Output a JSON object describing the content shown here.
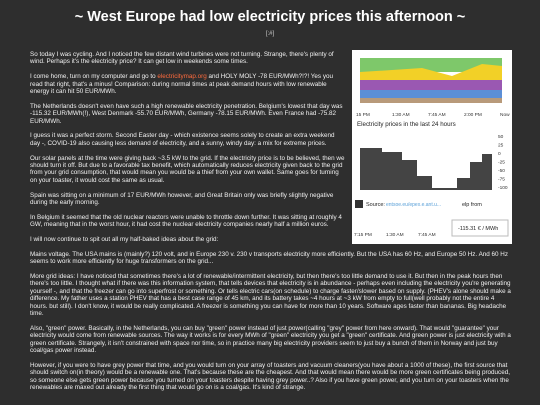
{
  "header": {
    "title": "~ West Europe had low electricity prices this afternoon ~",
    "subtitle": "[:#]"
  },
  "figure": {
    "top_axis": [
      "15 PM",
      "1:30 AM",
      "7:45 AM",
      "2:00 PM",
      "Now"
    ],
    "price_title": "Electricity prices in the last 24 hours",
    "price_axis": [
      "50",
      "25",
      "0",
      "-25",
      "-50",
      "-75",
      "-100"
    ],
    "source_label": "Source:",
    "source_link": "entsoe.eu/epex.e.ant.u...",
    "source_tail": "elp from",
    "tooltip": "-115.31 € / MWh",
    "bottom_axis": [
      "7:15 PM",
      "1:30 AM",
      "7:45 AM"
    ]
  },
  "paragraphs": [
    "So today I was cycling. And I noticed the few distant wind turbines were not turning. Strange, there's plenty of wind. Perhaps it's the electricity price? It can get low in weekends some times.",
    {
      "before": "I come home, turn on my computer and go to ",
      "link": "electricitymap.org",
      "after": " and HOLY MOLY -78 EUR/MWh?!?! Yes you read that right, that's a minus! Comparison: during normal times at peak demand hours with low renewable energy it can hit 50 EUR/MWh."
    },
    "The Netherlands doesn't even have such a high renewable electricity penetration. Belgium's lowest that day was -115.32 EUR/MWh(!), West Denmark -55.70 EUR/MWh, Germany -78.15 EUR/MWh. Even France had -75.82 EUR/MWh.",
    "I guess it was a perfect storm. Second Easter day - which existence seems solely to create an extra weekend day -, COVID-19 also causing less demand of electricity, and a sunny, windy day: a mix for extreme prices.",
    "Our solar panels at the time were giving back ~3.5 kW to the grid. If the electricity price is to be believed, then we should turn it off. But due to a favorable tax benefit, which automatically reduces electricity given back to the grid from your grid consumption, that would mean you would be a thief from your own wallet. Same goes for turning on your toaster, it would cost the same as usual.",
    "Spain was sitting on a minimum of 17 EUR/MWh however, and Great Britain only was briefly slightly negative during the early morning.",
    "In Belgium it seemed that the old nuclear reactors were unable to throttle down further. It was sitting at roughly 4 GW, meaning that in the worst hour, it had cost the nuclear electricity companies nearly half a million euros.",
    "I will now continue to spit out all my half-baked ideas about the grid:",
    "Mains voltage. The USA mains is (mainly?) 120 volt, and in Europe 230 v. 230 v transports electricity more efficiently. But the USA has 60 Hz, and Europe 50 Hz. And 60 Hz seems to work more efficiently for huge transformers on the grid...",
    "More grid ideas: I have noticed that sometimes there's a lot of renewable/intermittent electricity, but then there's too little demand to use it. But then in the peak hours then there's too little. I thought what if there was this information system, that tells devices that electricity is in abundance - perhaps even including the electricity you're generating yourself -, and that the freezer can go into superfrost or something. Or tells electric cars(on schedule) to charge faster/slower based on supply. (PHEV's alone should make a difference. My father uses a station PHEV that has a best case range of 45 km, and its battery takes ~4 hours at ~3 kW from empty to full(well probably not the entire 4 hours. but still). I don't know, it would be really complicated. A freezer is something you can have for more than 10 years. Software ages faster than bananas. Big headache time.",
    "Also, \"green\" power. Basically, in the Netherlands, you can buy \"green\" power instead of just power(calling \"grey\" power from here onward). That would \"guarantee\" your electricity would come from renewable sources. The way it works is for every MWh of \"green\" electricity you get a \"green\" certificate. And green power is just electricity with a green certificate. Strangely, it isn't constrained with space nor time, so in practice many big electricity providers seem to just buy a bunch of them in Norway and just buy coal/gas power instead.",
    "However, if you were to have grey power that time, and you would turn on your array of toasters and vacuum cleaners(you have about a 1000 of these), the first source that should switch on(in theory) would be a renewable one. That's because these are the cheapest. And that would mean there would be more green certificates being produced, so someone else gets green power because you turned on your toasters despite having grey power..? Also if you have green power, and you turn on your toasters when the renewables are maxed out already the first thing that would go on is a coal/gas. It's kind of strange."
  ]
}
